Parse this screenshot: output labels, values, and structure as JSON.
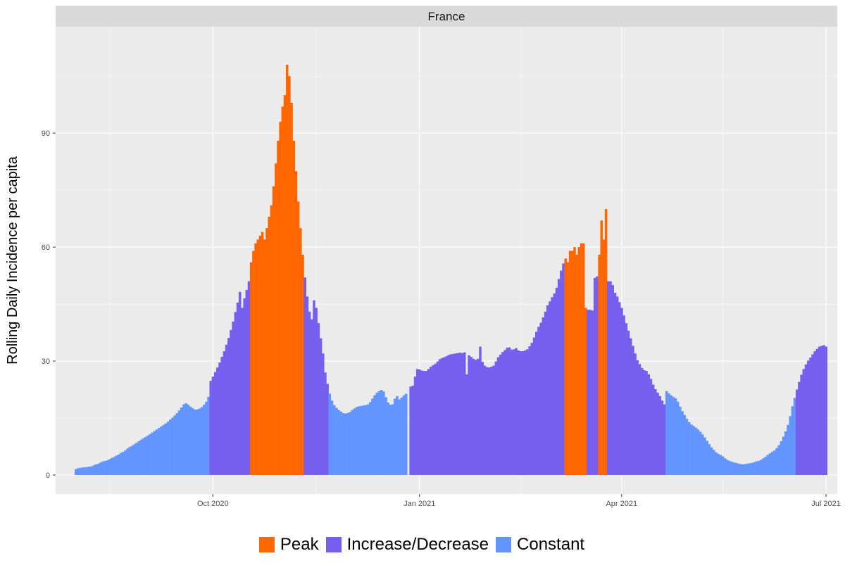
{
  "chart_data": {
    "type": "bar",
    "facet_title": "France",
    "ylabel": "Rolling Daily Incidence per capita",
    "xlabel": "",
    "ylim": [
      -5,
      118
    ],
    "y_ticks": [
      0,
      30,
      60,
      90
    ],
    "x_ticks": [
      "Oct 2020",
      "Jan 2021",
      "Apr 2021",
      "Jul 2021"
    ],
    "x_range_days": [
      -70,
      278
    ],
    "grid": true,
    "legend_position": "bottom",
    "colors": {
      "Peak": "#FF6600",
      "Increase/Decrease": "#765EEE",
      "Constant": "#6495FF"
    },
    "legend": [
      "Peak",
      "Increase/Decrease",
      "Constant"
    ],
    "series": [
      {
        "start": "2020-08-01",
        "category": "Constant",
        "values": [
          1.6,
          1.8,
          1.9,
          2.0,
          2.0,
          2.1,
          2.2,
          2.3,
          2.6,
          2.8,
          3.0,
          3.3,
          3.6,
          3.7,
          3.9,
          4.2,
          4.5,
          4.8,
          5.1,
          5.4,
          5.8,
          6.1,
          6.5,
          7.0,
          7.4,
          7.7,
          8.1,
          8.5,
          8.9,
          9.3,
          9.7,
          10.0,
          10.4,
          10.8,
          11.2,
          11.6,
          12.0,
          12.4,
          12.8,
          13.2,
          13.6,
          14.1,
          14.6,
          15.1,
          15.7,
          16.3,
          17.0,
          17.8,
          18.6,
          18.9,
          18.5,
          18.0,
          17.6,
          17.2,
          17.3,
          17.5,
          17.9,
          18.5,
          19.3,
          20.6
        ]
      },
      {
        "start": "2020-09-30",
        "category": "Increase/Decrease",
        "values": [
          24.8,
          25.9,
          27.1,
          28.3,
          29.6,
          31.1,
          32.6,
          34.3,
          36.1,
          38.2,
          40.4,
          42.9,
          45.4,
          48.2,
          44.0,
          46.5,
          48.7,
          51.0
        ]
      },
      {
        "start": "2020-10-18",
        "category": "Peak",
        "values": [
          56,
          59,
          61,
          62,
          63,
          64,
          62,
          65,
          68,
          71,
          76,
          82,
          88,
          93,
          97,
          100,
          108,
          105,
          98,
          88,
          80,
          72,
          65,
          58
        ]
      },
      {
        "start": "2020-11-11",
        "category": "Increase/Decrease",
        "values": [
          52,
          47,
          43,
          41,
          46,
          44,
          40,
          36,
          32,
          27,
          24
        ]
      },
      {
        "start": "2020-11-22",
        "category": "Constant",
        "values": [
          21.4,
          19.6,
          18.4,
          17.7,
          17.1,
          16.7,
          16.3,
          16.2,
          16.3,
          16.6,
          17.1,
          17.5,
          17.9,
          18.1,
          18.2,
          18.3,
          18.4,
          18.6,
          19.2,
          20.1,
          21.0,
          21.7,
          22.1,
          22.4,
          22.0,
          20.5,
          19.1,
          18.5,
          18.6,
          20.1,
          20.8,
          19.9,
          20.4,
          21.0,
          21.4
        ]
      },
      {
        "start": "2020-12-28",
        "category": "Increase/Decrease",
        "values": [
          23.3,
          23.5,
          25.9,
          27.9,
          27.8,
          27.5,
          27.4,
          27.4,
          27.9,
          28.5,
          28.9,
          29.3,
          29.9,
          30.5,
          30.8,
          31.0,
          31.3,
          31.6,
          31.8,
          31.9,
          32.0,
          32.1,
          32.2,
          32.1,
          32.3,
          26.5,
          31.5,
          31.1,
          30.6,
          30.3,
          30.6,
          33.8,
          29.8,
          28.8,
          28.4,
          28.3,
          28.5,
          28.8,
          29.9,
          31.0,
          31.7,
          32.4,
          32.9,
          33.5,
          33.6,
          33.0,
          33.1,
          33.4,
          32.8,
          32.6,
          32.6,
          32.8,
          33.1,
          33.9,
          34.8,
          36.2,
          37.7,
          39.0,
          40.1,
          41.5,
          43.0,
          44.7,
          45.7,
          46.8,
          47.8,
          49.3,
          51.6,
          53.8,
          55.7
        ]
      },
      {
        "start": "2021-03-07",
        "category": "Peak",
        "values": [
          57,
          56,
          59,
          59,
          60,
          58,
          60,
          61,
          61,
          44
        ]
      },
      {
        "start": "2021-03-17",
        "category": "Increase/Decrease",
        "values": [
          43.5,
          43.5,
          43.3,
          51.9,
          52.3
        ]
      },
      {
        "start": "2021-03-22",
        "category": "Peak",
        "values": [
          58,
          67,
          62,
          70
        ]
      },
      {
        "start": "2021-03-26",
        "category": "Increase/Decrease",
        "values": [
          51,
          51,
          50,
          48,
          47,
          45.5,
          44,
          42,
          40,
          38,
          36,
          34,
          32,
          30.2,
          29.2,
          28.2,
          27.6,
          27.4,
          26.5,
          25.3,
          23.8,
          22.6,
          21.7,
          20.8,
          19.6,
          18.6
        ]
      },
      {
        "start": "2021-04-21",
        "category": "Constant",
        "values": [
          22.1,
          21.5,
          21.0,
          20.6,
          20.2,
          19.3,
          18.0,
          16.8,
          15.8,
          14.8,
          13.9,
          13.3,
          12.9,
          12.5,
          12.0,
          11.4,
          10.7,
          9.9,
          9.0,
          8.1,
          7.3,
          6.6,
          6.0,
          5.6,
          5.3,
          4.9,
          4.4,
          4.0,
          3.7,
          3.5,
          3.3,
          3.2,
          3.0,
          2.9,
          2.8,
          2.9,
          3.0,
          3.1,
          3.2,
          3.4,
          3.6,
          3.7,
          4.0,
          4.4,
          4.8,
          5.3,
          5.7,
          6.1,
          6.5,
          7.1,
          7.9,
          8.9,
          10.1,
          11.5,
          13.2,
          15.5,
          18.1,
          20.3
        ]
      },
      {
        "start": "2021-06-18",
        "category": "Increase/Decrease",
        "values": [
          22.5,
          24.5,
          26.4,
          27.9,
          29.1,
          30.1,
          30.9,
          31.8,
          32.6,
          33.2,
          33.8,
          34.0,
          34.2,
          33.8
        ]
      }
    ]
  }
}
